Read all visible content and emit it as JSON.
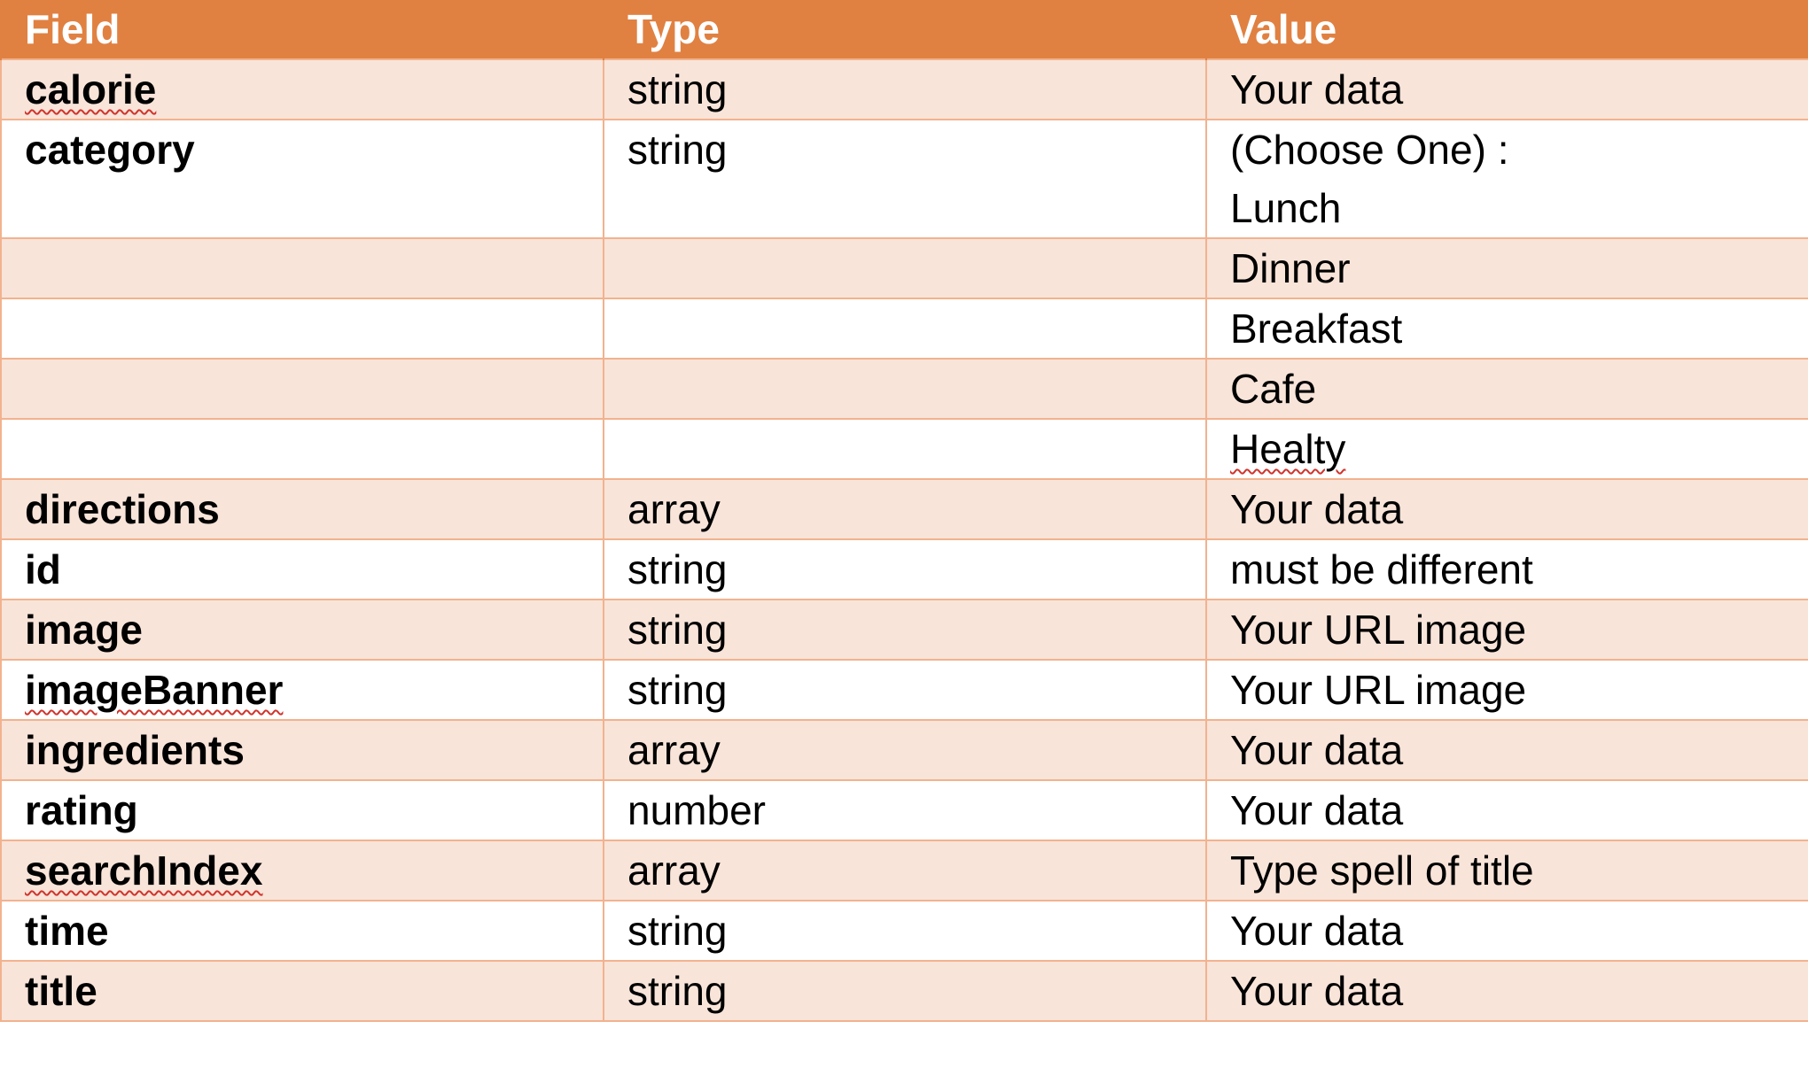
{
  "colors": {
    "header_bg": "#E08142",
    "header_text": "#FFFFFF",
    "band_bg": "#F8E4D9",
    "border": "#F2B28E",
    "spellcheck": "#D0342C"
  },
  "headers": {
    "field": "Field",
    "type": "Type",
    "value": "Value"
  },
  "rows": [
    {
      "field": "calorie",
      "type": "string",
      "value": "Your data"
    },
    {
      "field": "category",
      "type": "string",
      "value": "(Choose One) :",
      "value_line2": "Lunch"
    },
    {
      "field": "",
      "type": "",
      "value": "Dinner"
    },
    {
      "field": "",
      "type": "",
      "value": "Breakfast"
    },
    {
      "field": "",
      "type": "",
      "value": "Cafe"
    },
    {
      "field": "",
      "type": "",
      "value": "Healty"
    },
    {
      "field": "directions",
      "type": "array",
      "value": "Your data"
    },
    {
      "field": "id",
      "type": "string",
      "value": "must be different"
    },
    {
      "field": "image",
      "type": "string",
      "value": "Your URL image"
    },
    {
      "field": "imageBanner",
      "type": "string",
      "value": "Your URL image"
    },
    {
      "field": "ingredients",
      "type": "array",
      "value": "Your data"
    },
    {
      "field": "rating",
      "type": "number",
      "value": "Your data"
    },
    {
      "field": "searchIndex",
      "type": "array",
      "value": "Type spell of title"
    },
    {
      "field": "time",
      "type": "string",
      "value": "Your data"
    },
    {
      "field": "title",
      "type": "string",
      "value": "Your data"
    }
  ]
}
